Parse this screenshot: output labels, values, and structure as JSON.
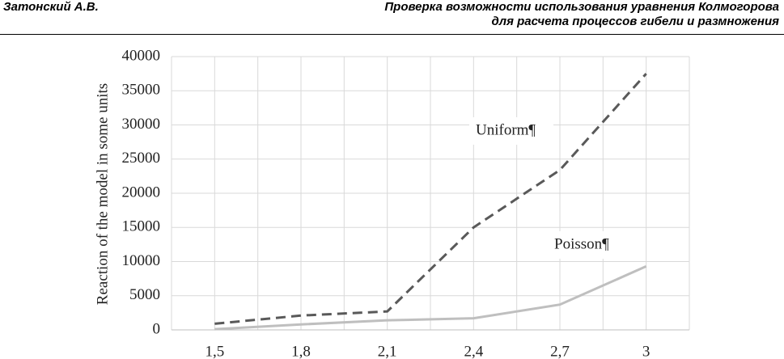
{
  "header": {
    "author": "Затонский А.В.",
    "title_lines": [
      "Проверка возможности использования уравнения Колмогорова",
      "для расчета процессов гибели и размножения"
    ]
  },
  "chart_data": {
    "type": "line",
    "y_label": "Reaction of the model in some units",
    "categories": [
      "1,5",
      "1,8",
      "2,1",
      "2,4",
      "2,7",
      "3"
    ],
    "series": [
      {
        "name": "Uniform¶",
        "color": "#595959",
        "dash": "dashed",
        "values": [
          900,
          2100,
          2700,
          15000,
          23400,
          37500
        ]
      },
      {
        "name": "Poisson¶",
        "color": "#bfbfbf",
        "dash": "solid",
        "values": [
          100,
          800,
          1400,
          1700,
          3700,
          9300
        ]
      }
    ],
    "ylim": [
      0,
      40000
    ],
    "yticks": [
      0,
      5000,
      10000,
      15000,
      20000,
      25000,
      30000,
      35000,
      40000
    ],
    "grid": true
  }
}
